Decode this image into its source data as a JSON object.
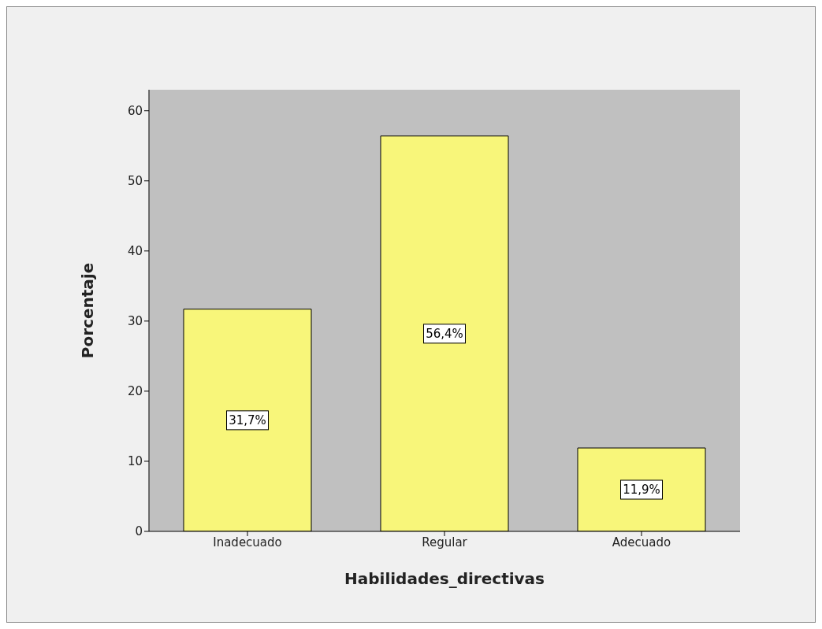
{
  "chart_data": {
    "type": "bar",
    "xlabel": "Habilidades_directivas",
    "ylabel": "Porcentaje",
    "categories": [
      "Inadecuado",
      "Regular",
      "Adecuado"
    ],
    "values": [
      31.7,
      56.4,
      11.9
    ],
    "value_labels": [
      "31,7%",
      "56,4%",
      "11,9%"
    ],
    "color": "#f8f67a",
    "ylim": [
      0,
      63
    ],
    "yticks": [
      0,
      10,
      20,
      30,
      40,
      50,
      60
    ],
    "grid": false
  }
}
